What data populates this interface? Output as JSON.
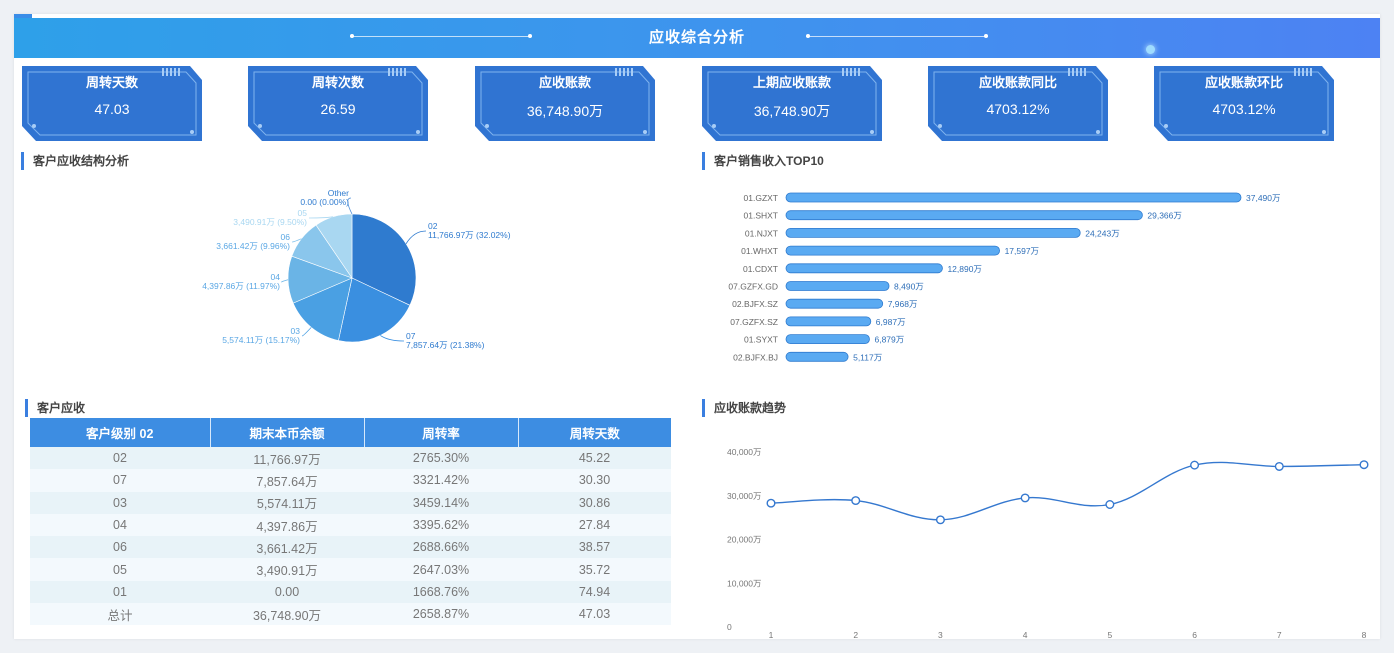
{
  "header": {
    "title": "应收综合分析"
  },
  "kpis": [
    {
      "label": "周转天数",
      "value": "47.03"
    },
    {
      "label": "周转次数",
      "value": "26.59"
    },
    {
      "label": "应收账款",
      "value": "36,748.90万"
    },
    {
      "label": "上期应收账款",
      "value": "36,748.90万"
    },
    {
      "label": "应收账款同比",
      "value": "4703.12%"
    },
    {
      "label": "应收账款环比",
      "value": "4703.12%"
    }
  ],
  "sections": {
    "pie_title": "客户应收结构分析",
    "bar_title": "客户销售收入TOP10",
    "table_title": "客户应收",
    "line_title": "应收账款趋势"
  },
  "pie": {
    "chart_data": {
      "type": "pie",
      "slices": [
        {
          "name": "02",
          "value": 11766.97,
          "label": "11,766.97万 (32.02%)",
          "color": "#2f7bcf"
        },
        {
          "name": "07",
          "value": 7857.64,
          "label": "7,857.64万 (21.38%)",
          "color": "#3a8fe0"
        },
        {
          "name": "03",
          "value": 5574.11,
          "label": "5,574.11万 (15.17%)",
          "color": "#4aa0e3"
        },
        {
          "name": "04",
          "value": 4397.86,
          "label": "4,397.86万 (11.97%)",
          "color": "#6ab4e6"
        },
        {
          "name": "06",
          "value": 3661.42,
          "label": "3,661.42万 (9.96%)",
          "color": "#8ac6ec"
        },
        {
          "name": "05",
          "value": 3490.91,
          "label": "3,490.91万 (9.50%)",
          "color": "#a9d7f1"
        },
        {
          "name": "Other",
          "value": 0.0,
          "label": "0.00 (0.00%)",
          "color": "#4f8fd8"
        }
      ]
    }
  },
  "bar": {
    "chart_data": {
      "type": "bar",
      "orientation": "horizontal",
      "categories": [
        "01.GZXT",
        "01.SHXT",
        "01.NJXT",
        "01.WHXT",
        "01.CDXT",
        "07.GZFX.GD",
        "02.BJFX.SZ",
        "07.GZFX.SZ",
        "01.SYXT",
        "02.BJFX.BJ"
      ],
      "values": [
        37490,
        29366,
        24243,
        17597,
        12890,
        8490,
        7968,
        6987,
        6879,
        5117
      ],
      "labels": [
        "37,490万",
        "29,366万",
        "24,243万",
        "17,597万",
        "12,890万",
        "8,490万",
        "7,968万",
        "6,987万",
        "6,879万",
        "5,117万"
      ],
      "color": "#5aaaf2"
    }
  },
  "table": {
    "columns": [
      "客户级别 02",
      "期末本币余额",
      "周转率",
      "周转天数"
    ],
    "rows": [
      [
        "02",
        "11,766.97万",
        "2765.30%",
        "45.22"
      ],
      [
        "07",
        "7,857.64万",
        "3321.42%",
        "30.30"
      ],
      [
        "03",
        "5,574.11万",
        "3459.14%",
        "30.86"
      ],
      [
        "04",
        "4,397.86万",
        "3395.62%",
        "27.84"
      ],
      [
        "06",
        "3,661.42万",
        "2688.66%",
        "38.57"
      ],
      [
        "05",
        "3,490.91万",
        "2647.03%",
        "35.72"
      ],
      [
        "01",
        "0.00",
        "1668.76%",
        "74.94"
      ],
      [
        "总计",
        "36,748.90万",
        "2658.87%",
        "47.03"
      ]
    ]
  },
  "line": {
    "chart_data": {
      "type": "line",
      "x": [
        1,
        2,
        3,
        4,
        5,
        6,
        7,
        8
      ],
      "y": [
        28300,
        28900,
        24500,
        29500,
        28000,
        37000,
        36700,
        37100
      ],
      "ylim": [
        0,
        40000
      ],
      "yticks": [
        0,
        10000,
        20000,
        30000,
        40000
      ],
      "ytick_labels": [
        "0",
        "10,000万",
        "20,000万",
        "30,000万",
        "40,000万"
      ],
      "color": "#3578cf"
    }
  }
}
